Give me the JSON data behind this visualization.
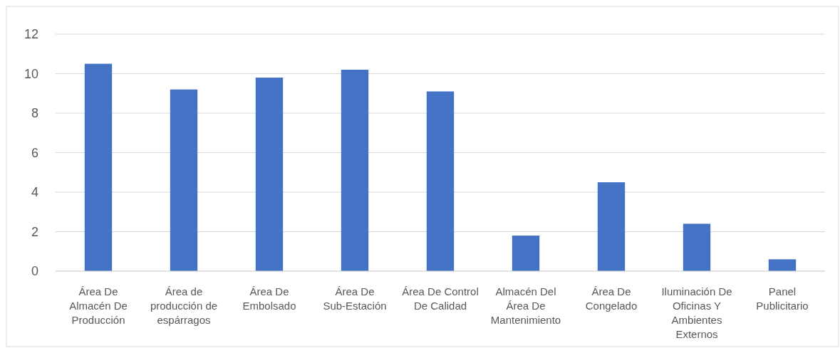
{
  "chart_data": {
    "type": "bar",
    "categories": [
      "Área De Almacén De Producción",
      "Área de producción de espárragos",
      "Área De Embolsado",
      "Área De Sub-Estación",
      "Área De Control De Calidad",
      "Almacén Del Área De Mantenimiento",
      "Área De Congelado",
      "Iluminación De Oficinas Y Ambientes Externos",
      "Panel Publicitario"
    ],
    "values": [
      10.5,
      9.2,
      9.8,
      10.2,
      9.1,
      1.8,
      4.5,
      2.4,
      0.6
    ],
    "color": "#4472c4",
    "ylim": [
      0,
      12
    ],
    "yticks": [
      0,
      2,
      4,
      6,
      8,
      10,
      12
    ],
    "grid": "y"
  }
}
